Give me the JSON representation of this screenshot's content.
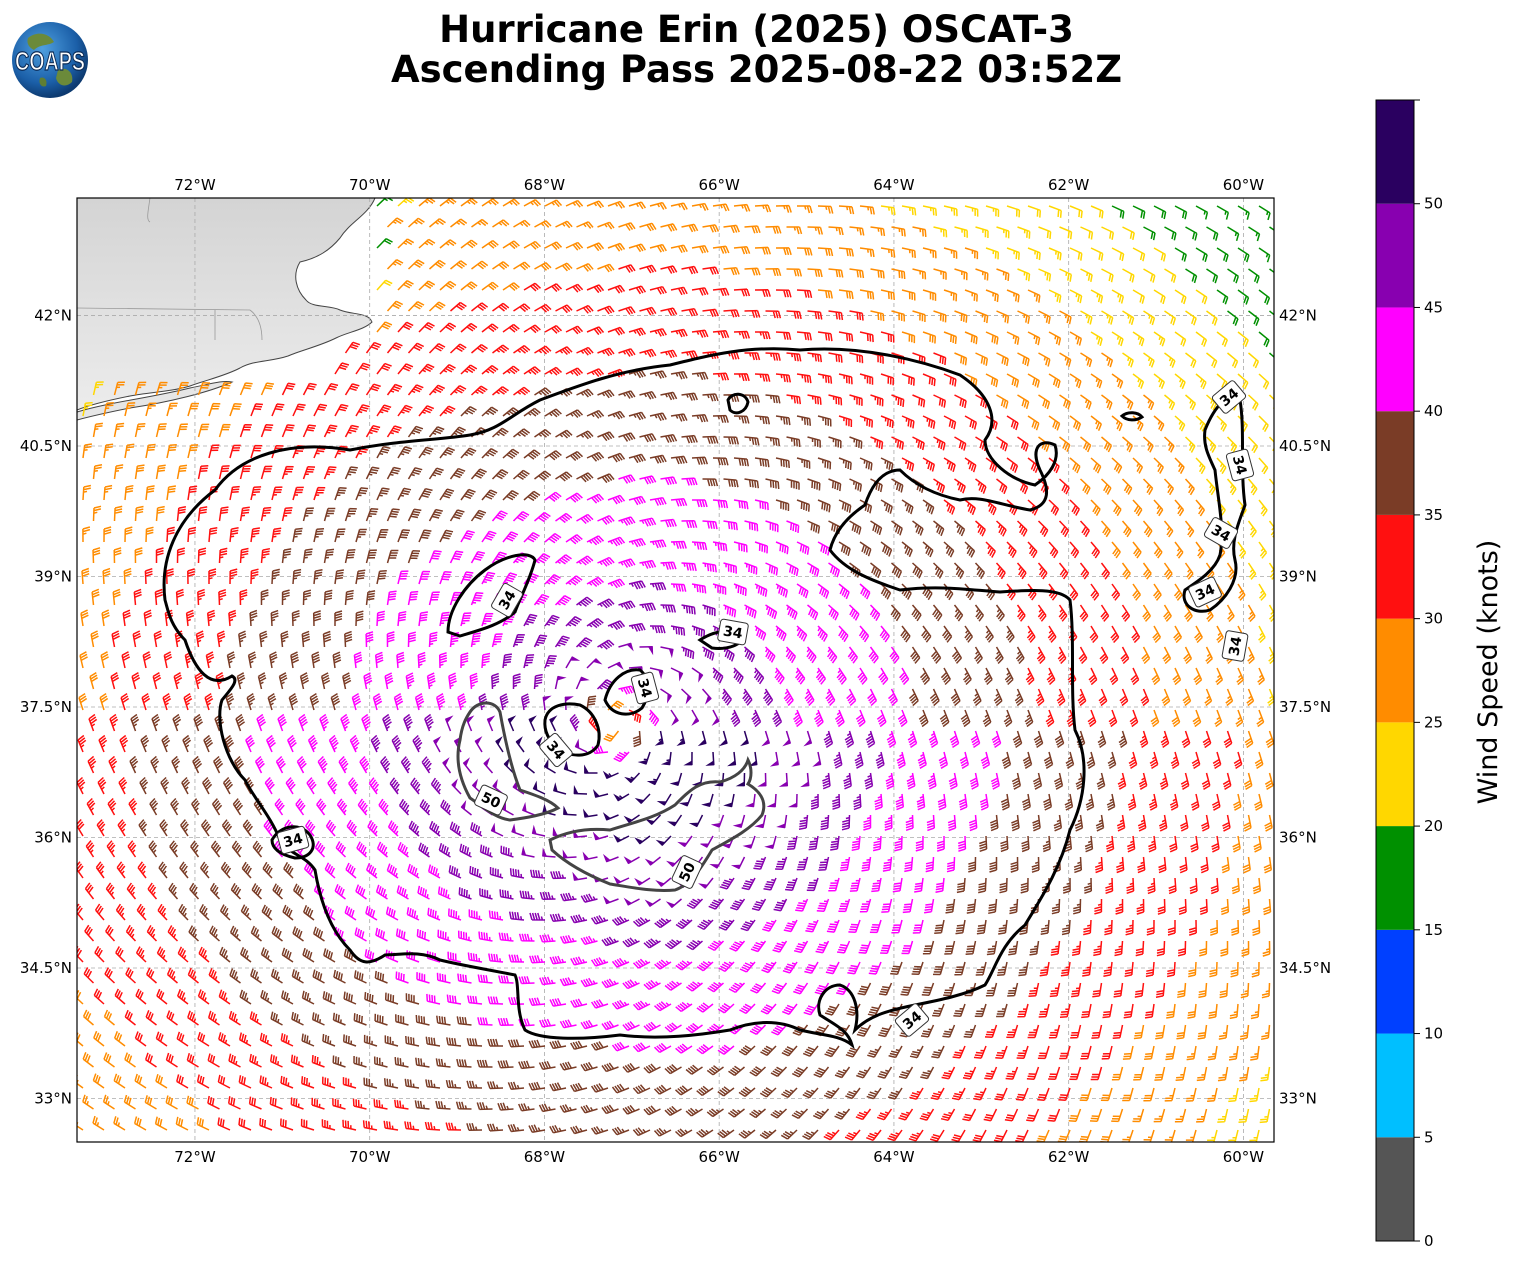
{
  "header": {
    "title_line1": "Hurricane Erin (2025) OSCAT-3",
    "title_line2": "Ascending Pass 2025-08-22 03:52Z",
    "logo_text": "COAPS"
  },
  "map": {
    "extent": {
      "lon_min": -73.35,
      "lon_max": -59.65,
      "lat_min": 32.5,
      "lat_max": 43.35
    },
    "lon_ticks": [
      -72,
      -70,
      -68,
      -66,
      -64,
      -62,
      -60
    ],
    "lon_tick_labels": [
      "72°W",
      "70°W",
      "68°W",
      "66°W",
      "64°W",
      "62°W",
      "60°W"
    ],
    "lat_ticks": [
      33,
      34.5,
      36,
      37.5,
      39,
      40.5,
      42
    ],
    "lat_tick_labels": [
      "33°N",
      "34.5°N",
      "36°N",
      "37.5°N",
      "39°N",
      "40.5°N",
      "42°N"
    ],
    "gridlines": true,
    "storm_center": {
      "lon": -67.2,
      "lat": 37.3
    },
    "contour_labels": {
      "outer": "34",
      "inner": "50"
    }
  },
  "colorbar": {
    "label": "Wind Speed (knots)",
    "bounds": [
      0,
      5,
      10,
      15,
      20,
      25,
      30,
      35,
      40,
      45,
      50,
      55
    ],
    "tick_values": [
      0,
      5,
      10,
      15,
      20,
      25,
      30,
      35,
      40,
      45,
      50
    ],
    "tick_labels": [
      "0",
      "5",
      "10",
      "15",
      "20",
      "25",
      "30",
      "35",
      "40",
      "45",
      "50"
    ],
    "colors": [
      "#555555",
      "#00bfff",
      "#0040ff",
      "#009000",
      "#ffd700",
      "#ff8c00",
      "#ff1010",
      "#7a3c26",
      "#ff00ff",
      "#8800b0",
      "#2a0060"
    ]
  }
}
